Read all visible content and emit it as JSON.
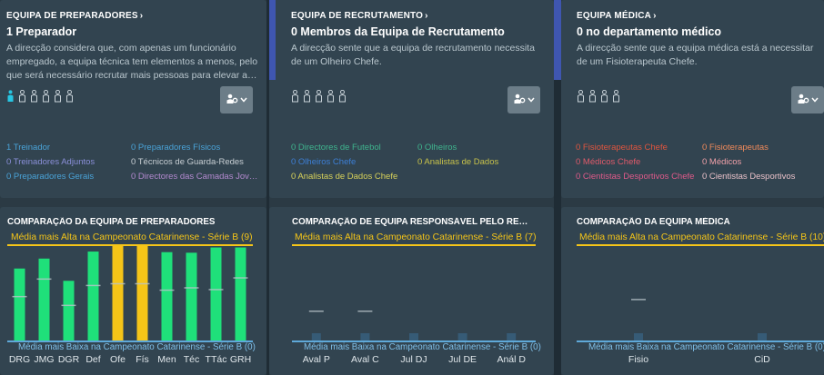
{
  "panels": [
    {
      "header": "EQUIPA DE PREPARADORES",
      "title": "1 Preparador",
      "desc": "A direcção considera que, com apenas um funcionário empregado, a equipa técnica tem elementos a menos, pelo que será necessário recrutar mais pessoas para elevar a…",
      "people_total": 6,
      "people_filled": 1,
      "roles": [
        {
          "text": "1 Treinador",
          "color": "#4aa3d8"
        },
        {
          "text": "0 Preparadores Físicos",
          "color": "#4aa3d8"
        },
        {
          "text": "0 Treinadores Adjuntos",
          "color": "#8a8fd8"
        },
        {
          "text": "0 Técnicos de Guarda-Redes",
          "color": "#c8cfd4"
        },
        {
          "text": "0 Preparadores Gerais",
          "color": "#4aa3d8"
        },
        {
          "text": "0 Directores das Camadas Jov…",
          "color": "#b48ad0"
        }
      ],
      "chart_title": "COMPARAÇÃO DA EQUIPA DE PREPARADORES",
      "hi_label": "Média mais Alta na Campeonato Catarinense - Série B (9)",
      "lo_label": "Média mais Baixa na Campeonato Catarinense - Série B (0)"
    },
    {
      "header": "EQUIPA DE RECRUTAMENTO",
      "title": "0 Membros da Equipa de Recrutamento",
      "desc": "A direcção sente que a equipa de recrutamento necessita de um Olheiro Chefe.",
      "people_total": 5,
      "people_filled": 0,
      "roles": [
        {
          "text": "0 Directores de Futebol",
          "color": "#3fb58e"
        },
        {
          "text": "0 Olheiros",
          "color": "#3fb58e"
        },
        {
          "text": "0 Olheiros Chefe",
          "color": "#3d7fd6"
        },
        {
          "text": "0 Analistas de Dados",
          "color": "#c8c24a"
        },
        {
          "text": "0 Analistas de Dados Chefe",
          "color": "#d8d25a"
        }
      ],
      "chart_title": "COMPARAÇÃO DE EQUIPA RESPONSÁVEL PELO RECR…",
      "hi_label": "Média mais Alta na Campeonato Catarinense - Série B (7)",
      "lo_label": "Média mais Baixa na Campeonato Catarinense - Série B (0)"
    },
    {
      "header": "EQUIPA MÉDICA",
      "title": "0 no departamento médico",
      "desc": "A direcção sente que a equipa médica está a necessitar de um Fisioterapeuta Chefe.",
      "people_total": 4,
      "people_filled": 0,
      "roles": [
        {
          "text": "0 Fisioterapeutas Chefe",
          "color": "#e0553e"
        },
        {
          "text": "0 Fisioterapeutas",
          "color": "#f08a5a"
        },
        {
          "text": "0 Médicos Chefe",
          "color": "#e05a6a"
        },
        {
          "text": "0 Médicos",
          "color": "#f0a0a8"
        },
        {
          "text": "0 Cientistas Desportivos Chefe",
          "color": "#e05a8a"
        },
        {
          "text": "0 Cientistas Desportivos",
          "color": "#e8c0c8"
        }
      ],
      "chart_title": "COMPARAÇÃO DA EQUIPA MÉDICA",
      "hi_label": "Média mais Alta na Campeonato Catarinense - Série B (10)",
      "lo_label": "Média mais Baixa na Campeonato Catarinense - Série B (0)"
    }
  ],
  "icons": {
    "header_chevron": "chevron-right-icon",
    "dropdown": "staff-filter-icon",
    "dropdown_caret": "chevron-down-icon",
    "person": "person-icon"
  },
  "colors": {
    "bar_green": "#1fe07a",
    "bar_yellow": "#f5c518",
    "hi_line": "#f5c518",
    "lo_line": "#5fa9d9",
    "person_filled": "#27c6e3",
    "person_empty": "#c8d2d8"
  },
  "chart_data": [
    {
      "type": "bar",
      "title": "COMPARAÇÃO DA EQUIPA DE PREPARADORES",
      "categories": [
        "DRG",
        "JMG",
        "DGR",
        "Def",
        "Ofe",
        "Fís",
        "Men",
        "Téc",
        "TTác",
        "GRH"
      ],
      "values": [
        12.3,
        14.0,
        10.2,
        15.2,
        16.4,
        16.4,
        15.1,
        15.0,
        15.9,
        15.9
      ],
      "averages": [
        7.5,
        10.5,
        6.0,
        9.4,
        9.7,
        9.7,
        8.6,
        9.0,
        8.7,
        10.7
      ],
      "highlight": [
        "Ofe",
        "Fís"
      ],
      "ylim": [
        0,
        18
      ]
    },
    {
      "type": "bar",
      "title": "COMPARAÇÃO DE EQUIPA RESPONSÁVEL PELO RECR…",
      "categories": [
        "Aval P",
        "Aval C",
        "Jul DJ",
        "Jul DE",
        "Anál D"
      ],
      "values": [
        0,
        0,
        0,
        0,
        0
      ],
      "averages": [
        5.0,
        5.0,
        null,
        null,
        null
      ],
      "ylim": [
        0,
        18
      ]
    },
    {
      "type": "bar",
      "title": "COMPARAÇÃO DA EQUIPA MÉDICA",
      "categories": [
        "Fisio",
        "CiD"
      ],
      "values": [
        0,
        0
      ],
      "averages": [
        7.0,
        null
      ],
      "ylim": [
        0,
        18
      ]
    }
  ]
}
